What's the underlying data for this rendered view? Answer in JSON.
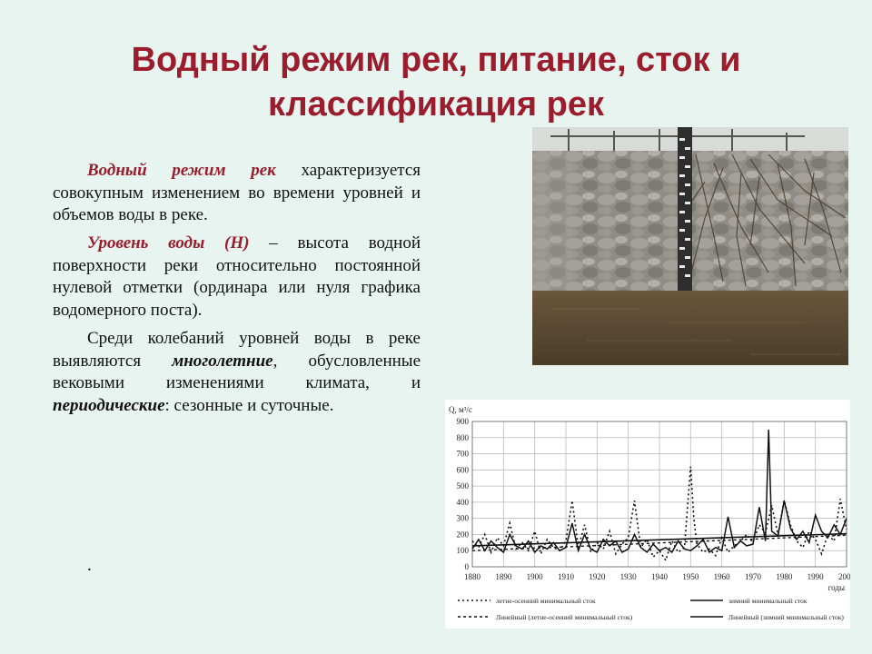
{
  "slide": {
    "title_line1": "Водный режим рек, питание, сток и",
    "title_line2": "классификация рек",
    "p1_term": "Водный режим рек",
    "p1_rest": "характеризуется совокупным изменением во времени уровней и объемов воды в реке.",
    "p2_term": "Уровень воды (Н)",
    "p2_rest": "– высота водной поверхности реки относительно постоянной нулевой отметки (ординара или нуля графика водомерного поста).",
    "p3_part1": "Среди колебаний уровней воды в реке выявляются",
    "p3_emph1": "многолетние",
    "p3_part2": ", обусловленные вековыми изменениями климата, и",
    "p3_emph2": "периодические",
    "p3_part3": ": сезонные и суточные.",
    "trailing_dot": "."
  },
  "photo": {
    "description_icon": "water-gauge-photo",
    "colors": {
      "wall": "#8c8a84",
      "water": "#5a4a34",
      "gauge": "#2b2b2b"
    }
  },
  "chart_data": {
    "type": "line",
    "ylabel": "Q, м³/с",
    "xlabel": "годы",
    "xlim": [
      1880,
      2000
    ],
    "ylim": [
      0,
      900
    ],
    "x_ticks": [
      1880,
      1890,
      1900,
      1910,
      1920,
      1930,
      1940,
      1950,
      1960,
      1970,
      1980,
      1990,
      2000
    ],
    "y_ticks": [
      0,
      100,
      200,
      300,
      400,
      500,
      600,
      700,
      800,
      900
    ],
    "grid": true,
    "legend_placement": "bottom",
    "series": [
      {
        "name": "летне-осенний минимальный сток",
        "style": "dotted",
        "x": [
          1880,
          1882,
          1884,
          1886,
          1888,
          1890,
          1892,
          1894,
          1896,
          1898,
          1900,
          1902,
          1904,
          1906,
          1908,
          1910,
          1912,
          1914,
          1916,
          1918,
          1920,
          1922,
          1924,
          1926,
          1928,
          1930,
          1932,
          1934,
          1936,
          1938,
          1940,
          1942,
          1944,
          1946,
          1948,
          1950,
          1951,
          1952,
          1954,
          1956,
          1958,
          1960,
          1962,
          1964,
          1966,
          1968,
          1970,
          1972,
          1974,
          1976,
          1978,
          1980,
          1982,
          1984,
          1986,
          1988,
          1990,
          1992,
          1994,
          1996,
          1998,
          2000
        ],
        "y": [
          160,
          120,
          200,
          90,
          180,
          130,
          270,
          110,
          150,
          100,
          220,
          80,
          170,
          120,
          100,
          160,
          410,
          120,
          260,
          90,
          150,
          110,
          220,
          80,
          140,
          180,
          410,
          120,
          170,
          60,
          100,
          40,
          160,
          90,
          120,
          620,
          300,
          140,
          90,
          110,
          70,
          180,
          90,
          130,
          160,
          200,
          150,
          260,
          210,
          380,
          200,
          410,
          260,
          160,
          120,
          220,
          170,
          80,
          200,
          160,
          420,
          230
        ]
      },
      {
        "name": "зимний минимальный сток",
        "style": "solid",
        "x": [
          1880,
          1882,
          1884,
          1886,
          1888,
          1890,
          1892,
          1894,
          1896,
          1898,
          1900,
          1902,
          1904,
          1906,
          1908,
          1910,
          1912,
          1914,
          1916,
          1918,
          1920,
          1922,
          1924,
          1926,
          1928,
          1930,
          1932,
          1934,
          1936,
          1938,
          1940,
          1942,
          1944,
          1946,
          1948,
          1950,
          1952,
          1954,
          1956,
          1958,
          1960,
          1962,
          1964,
          1966,
          1968,
          1970,
          1972,
          1974,
          1975,
          1976,
          1978,
          1980,
          1982,
          1984,
          1986,
          1988,
          1990,
          1992,
          1994,
          1996,
          1998,
          2000
        ],
        "y": [
          110,
          170,
          100,
          160,
          120,
          90,
          200,
          130,
          110,
          160,
          90,
          130,
          110,
          150,
          100,
          120,
          270,
          100,
          200,
          110,
          90,
          170,
          130,
          160,
          90,
          110,
          200,
          120,
          90,
          140,
          100,
          120,
          90,
          160,
          110,
          100,
          130,
          170,
          90,
          120,
          100,
          310,
          120,
          160,
          130,
          140,
          370,
          160,
          850,
          220,
          190,
          410,
          240,
          170,
          220,
          150,
          320,
          220,
          180,
          260,
          200,
          300
        ]
      },
      {
        "name": "Линейный (летне-осенний минимальный сток)",
        "style": "dotted-trend",
        "x": [
          1880,
          2000
        ],
        "y": [
          100,
          195
        ]
      },
      {
        "name": "Линейный (зимний минимальный сток)",
        "style": "solid-trend",
        "x": [
          1880,
          2000
        ],
        "y": [
          130,
          205
        ]
      }
    ]
  }
}
